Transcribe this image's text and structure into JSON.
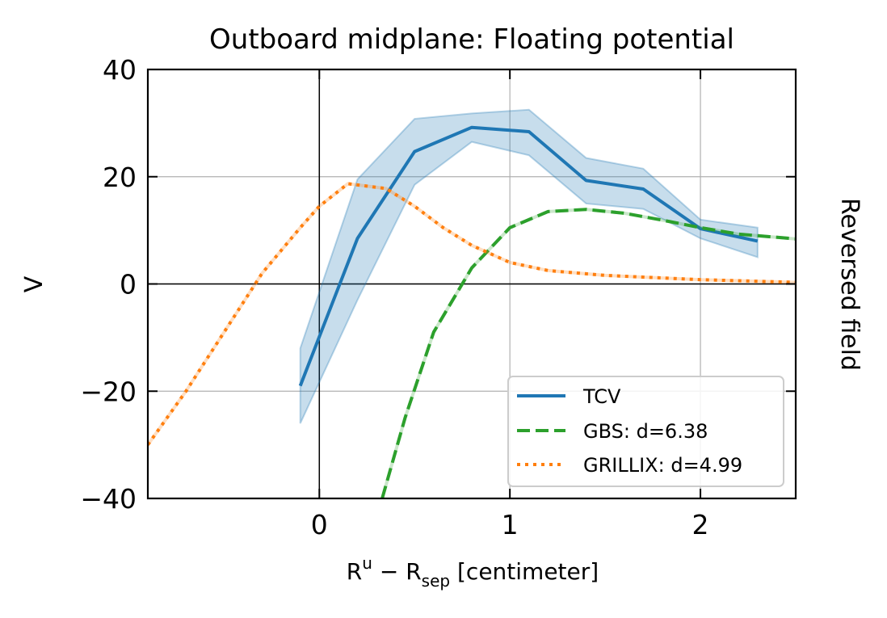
{
  "chart_data": {
    "type": "line",
    "title": "Outboard midplane: Floating potential",
    "xlabel_main": "R",
    "xlabel_sup": "u",
    "xlabel_minus": " − R",
    "xlabel_sub": "sep",
    "xlabel_unit": " [centimeter]",
    "ylabel": "V",
    "side_label": "Reversed field",
    "xlim": [
      -0.9,
      2.5
    ],
    "ylim": [
      -40,
      40
    ],
    "xticks": [
      0,
      1,
      2
    ],
    "xtick_labels": [
      "0",
      "1",
      "2"
    ],
    "yticks": [
      -40,
      -20,
      0,
      20,
      40
    ],
    "ytick_labels": [
      "−40",
      "−20",
      "0",
      "20",
      "40"
    ],
    "grid": true,
    "legend_position": "lower-right",
    "series": [
      {
        "name": "TCV",
        "style": "solid",
        "color": "#1f77b4",
        "x": [
          -0.1,
          0.2,
          0.5,
          0.8,
          1.1,
          1.4,
          1.7,
          2.0,
          2.3
        ],
        "y": [
          -19,
          8.5,
          24.7,
          29.2,
          28.4,
          19.3,
          17.7,
          10.3,
          8.0
        ],
        "band_upper": [
          -12,
          19.5,
          30.8,
          31.8,
          32.5,
          23.5,
          21.5,
          12.0,
          10.5
        ],
        "band_lower": [
          -26,
          -3,
          18.5,
          26.5,
          24.0,
          15.0,
          14.0,
          8.5,
          5.0
        ]
      },
      {
        "name": "GBS: d=6.38",
        "style": "dashed",
        "color": "#2ca02c",
        "x": [
          0.33,
          0.45,
          0.6,
          0.8,
          1.0,
          1.2,
          1.4,
          1.6,
          1.8,
          2.0,
          2.2,
          2.5
        ],
        "y": [
          -40,
          -25,
          -9,
          3,
          10.5,
          13.5,
          13.9,
          13.2,
          11.9,
          10.5,
          9.3,
          8.4
        ]
      },
      {
        "name": "GRILLIX: d=4.99",
        "style": "dotted",
        "color": "#ff7f0e",
        "x": [
          -0.9,
          -0.7,
          -0.5,
          -0.3,
          -0.1,
          0.0,
          0.15,
          0.35,
          0.5,
          0.65,
          0.8,
          1.0,
          1.2,
          1.5,
          2.0,
          2.5
        ],
        "y": [
          -30,
          -20,
          -9,
          2,
          10.5,
          14.5,
          18.7,
          17.8,
          14.5,
          10.5,
          7.2,
          4.0,
          2.5,
          1.6,
          0.8,
          0.3
        ]
      }
    ]
  }
}
